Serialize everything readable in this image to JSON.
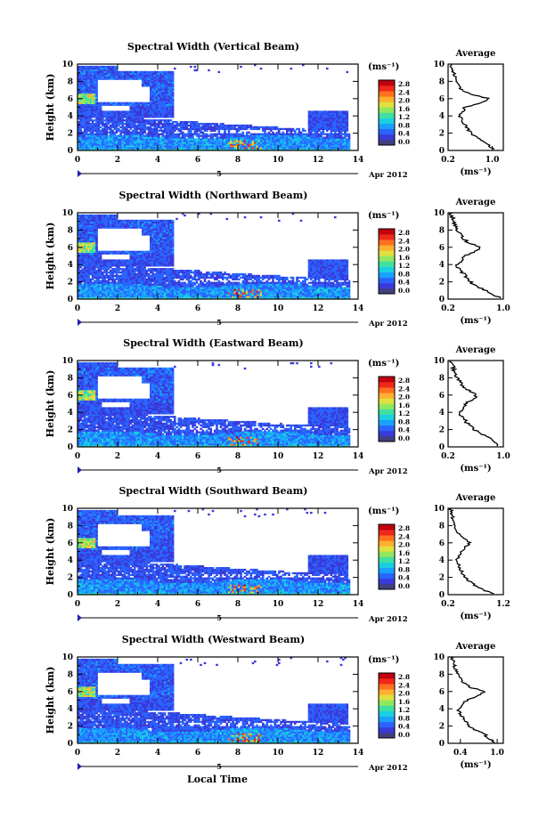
{
  "figure": {
    "xlabel": "Local Time",
    "date_label": "Apr 2012",
    "date_day": "5",
    "colorbar": {
      "unit_label": "(ms⁻¹)",
      "ticks": [
        "0.0",
        "0.4",
        "0.8",
        "1.2",
        "1.6",
        "2.0",
        "2.4",
        "2.8"
      ],
      "colors": [
        "#404080",
        "#3a3ad8",
        "#2a64ff",
        "#1aa0ff",
        "#1ad0e0",
        "#40e0a0",
        "#90e860",
        "#e0e040",
        "#ffb030",
        "#ff7020",
        "#f02818",
        "#c00010"
      ]
    }
  },
  "chart_data": [
    {
      "type": "heatmap",
      "title": "Spectral Width (Vertical Beam)",
      "ylabel": "Height (km)",
      "xlim": [
        0,
        14
      ],
      "ylim": [
        0,
        10
      ],
      "xticks": [
        "0",
        "2",
        "4",
        "6",
        "8",
        "10",
        "12",
        "14"
      ],
      "yticks": [
        "0",
        "2",
        "4",
        "6",
        "8",
        "10"
      ],
      "colorbar_range": [
        0,
        3.0
      ],
      "average_profile": {
        "title": "Average",
        "xlabel": "(ms⁻¹)",
        "xlim": [
          0.2,
          1.2
        ],
        "xticks": [
          "0.2",
          "1.0"
        ],
        "heights": [
          0.2,
          0.5,
          1.0,
          1.5,
          2.0,
          2.5,
          3.0,
          3.5,
          4.0,
          4.5,
          5.0,
          5.5,
          6.0,
          6.5,
          7.0,
          7.5,
          8.0,
          8.5,
          9.0,
          9.5,
          10.0
        ],
        "values": [
          1.0,
          0.95,
          0.85,
          0.72,
          0.62,
          0.55,
          0.5,
          0.45,
          0.4,
          0.48,
          0.5,
          0.8,
          0.95,
          0.6,
          0.45,
          0.4,
          0.35,
          0.32,
          0.3,
          0.28,
          0.25
        ]
      }
    },
    {
      "type": "heatmap",
      "title": "Spectral Width (Northward Beam)",
      "ylabel": "Height (km)",
      "xlim": [
        0,
        14
      ],
      "ylim": [
        0,
        10
      ],
      "xticks": [
        "0",
        "2",
        "4",
        "6",
        "8",
        "10",
        "12",
        "14"
      ],
      "yticks": [
        "0",
        "2",
        "4",
        "6",
        "8",
        "10"
      ],
      "colorbar_range": [
        0,
        3.0
      ],
      "average_profile": {
        "title": "Average",
        "xlabel": "(ms⁻¹)",
        "xlim": [
          0.2,
          1.0
        ],
        "xticks": [
          "0.2",
          "1.0"
        ],
        "heights": [
          0.2,
          0.5,
          1.0,
          1.5,
          2.0,
          2.5,
          3.0,
          3.5,
          4.0,
          4.5,
          5.0,
          5.5,
          6.0,
          6.5,
          7.0,
          7.5,
          8.0,
          8.5,
          9.0,
          9.5,
          10.0
        ],
        "values": [
          0.95,
          0.85,
          0.75,
          0.62,
          0.52,
          0.46,
          0.42,
          0.36,
          0.33,
          0.4,
          0.45,
          0.6,
          0.68,
          0.5,
          0.42,
          0.38,
          0.32,
          0.3,
          0.28,
          0.26,
          0.24
        ]
      }
    },
    {
      "type": "heatmap",
      "title": "Spectral Width (Eastward Beam)",
      "ylabel": "Height (km)",
      "xlim": [
        0,
        14
      ],
      "ylim": [
        0,
        10
      ],
      "xticks": [
        "0",
        "2",
        "4",
        "6",
        "8",
        "10",
        "12",
        "14"
      ],
      "yticks": [
        "0",
        "2",
        "4",
        "6",
        "8",
        "10"
      ],
      "colorbar_range": [
        0,
        3.0
      ],
      "average_profile": {
        "title": "Average",
        "xlabel": "(ms⁻¹)",
        "xlim": [
          0.2,
          1.0
        ],
        "xticks": [
          "0.2",
          "1.0"
        ],
        "heights": [
          0.2,
          0.5,
          1.0,
          1.5,
          2.0,
          2.5,
          3.0,
          3.5,
          4.0,
          4.5,
          5.0,
          5.5,
          6.0,
          6.5,
          7.0,
          7.5,
          8.0,
          8.5,
          9.0,
          9.5,
          10.0
        ],
        "values": [
          0.92,
          0.9,
          0.8,
          0.68,
          0.58,
          0.5,
          0.45,
          0.4,
          0.35,
          0.42,
          0.45,
          0.55,
          0.62,
          0.5,
          0.42,
          0.38,
          0.34,
          0.3,
          0.28,
          0.26,
          0.24
        ]
      }
    },
    {
      "type": "heatmap",
      "title": "Spectral Width (Southward Beam)",
      "ylabel": "Height (km)",
      "xlim": [
        0,
        14
      ],
      "ylim": [
        0,
        10
      ],
      "xticks": [
        "0",
        "2",
        "4",
        "6",
        "8",
        "10",
        "12",
        "14"
      ],
      "yticks": [
        "0",
        "2",
        "4",
        "6",
        "8",
        "10"
      ],
      "colorbar_range": [
        0,
        3.0
      ],
      "average_profile": {
        "title": "Average",
        "xlabel": "(ms⁻¹)",
        "xlim": [
          0.2,
          1.2
        ],
        "xticks": [
          "0.2",
          "1.2"
        ],
        "heights": [
          0.2,
          0.5,
          1.0,
          1.5,
          2.0,
          2.5,
          3.0,
          3.5,
          4.0,
          4.5,
          5.0,
          5.5,
          6.0,
          6.5,
          7.0,
          7.5,
          8.0,
          8.5,
          9.0,
          9.5,
          10.0
        ],
        "values": [
          1.0,
          0.85,
          0.7,
          0.6,
          0.52,
          0.46,
          0.42,
          0.38,
          0.35,
          0.4,
          0.45,
          0.5,
          0.6,
          0.48,
          0.4,
          0.35,
          0.32,
          0.3,
          0.28,
          0.26,
          0.25
        ]
      }
    },
    {
      "type": "heatmap",
      "title": "Spectral Width (Westward Beam)",
      "ylabel": "Height (km)",
      "xlim": [
        0,
        14
      ],
      "ylim": [
        0,
        10
      ],
      "xticks": [
        "0",
        "2",
        "4",
        "6",
        "8",
        "10",
        "12",
        "14"
      ],
      "yticks": [
        "0",
        "2",
        "4",
        "6",
        "8",
        "10"
      ],
      "colorbar_range": [
        0,
        3.0
      ],
      "average_profile": {
        "title": "Average",
        "xlabel": "(ms⁻¹)",
        "xlim": [
          0.2,
          1.1
        ],
        "xticks": [
          "0.4",
          "1.0"
        ],
        "heights": [
          0.2,
          0.5,
          1.0,
          1.5,
          2.0,
          2.5,
          3.0,
          3.5,
          4.0,
          4.5,
          5.0,
          5.5,
          6.0,
          6.5,
          7.0,
          7.5,
          8.0,
          8.5,
          9.0,
          9.5,
          10.0
        ],
        "values": [
          0.95,
          0.88,
          0.8,
          0.65,
          0.55,
          0.48,
          0.44,
          0.4,
          0.36,
          0.45,
          0.5,
          0.7,
          0.8,
          0.55,
          0.45,
          0.4,
          0.35,
          0.32,
          0.3,
          0.28,
          0.26
        ]
      }
    }
  ]
}
